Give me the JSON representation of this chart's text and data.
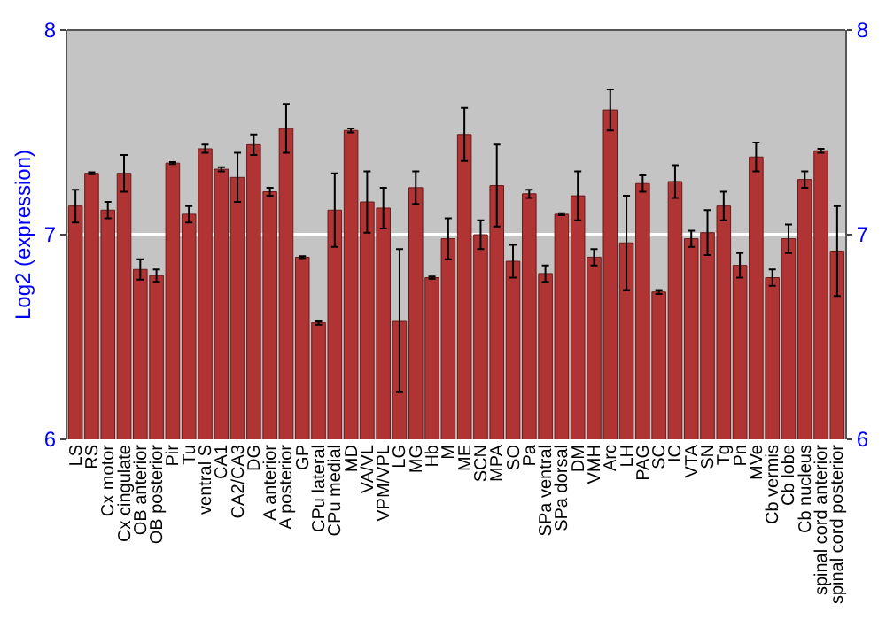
{
  "chart_data": {
    "type": "bar",
    "ylabel": "Log2 (expression)",
    "categories": [
      "LS",
      "RS",
      "Cx motor",
      "Cx cingulate",
      "OB anterior",
      "OB posterior",
      "Pir",
      "Tu",
      "ventral S",
      "CA1",
      "CA2/CA3",
      "DG",
      "A anterior",
      "A posterior",
      "GP",
      "CPu lateral",
      "CPu medial",
      "MD",
      "VA/VL",
      "VPM/VPL",
      "LG",
      "MG",
      "Hb",
      "M",
      "ME",
      "SCN",
      "MPA",
      "SO",
      "Pa",
      "SPa ventral",
      "SPa dorsal",
      "DM",
      "VMH",
      "Arc",
      "LH",
      "PAG",
      "SC",
      "IC",
      "VTA",
      "SN",
      "Tg",
      "Pn",
      "MVe",
      "Cb vermis",
      "Cb lobe",
      "Cb nucleus",
      "spinal cord anterior",
      "spinal cord posterior"
    ],
    "values": [
      7.14,
      7.3,
      7.12,
      7.3,
      6.83,
      6.8,
      7.35,
      7.1,
      7.42,
      7.32,
      7.28,
      7.44,
      7.21,
      7.52,
      6.89,
      6.57,
      7.12,
      7.51,
      7.16,
      7.13,
      6.58,
      7.23,
      6.79,
      6.98,
      7.49,
      7.0,
      7.24,
      6.87,
      7.2,
      6.81,
      7.1,
      7.19,
      6.89,
      7.61,
      6.96,
      7.25,
      6.72,
      7.26,
      6.98,
      7.01,
      7.14,
      6.85,
      7.38,
      6.79,
      6.98,
      7.27,
      7.41,
      6.92
    ],
    "errors": [
      0.08,
      0.005,
      0.04,
      0.09,
      0.05,
      0.03,
      0.005,
      0.04,
      0.02,
      0.01,
      0.12,
      0.05,
      0.02,
      0.12,
      0.005,
      0.01,
      0.18,
      0.01,
      0.15,
      0.1,
      0.35,
      0.08,
      0.005,
      0.1,
      0.13,
      0.07,
      0.2,
      0.08,
      0.02,
      0.04,
      0.005,
      0.12,
      0.04,
      0.1,
      0.23,
      0.04,
      0.01,
      0.08,
      0.04,
      0.11,
      0.07,
      0.06,
      0.07,
      0.04,
      0.07,
      0.04,
      0.01,
      0.22
    ],
    "color": "#b03434",
    "ylim": [
      6,
      8
    ],
    "yticks": [
      6,
      7,
      8
    ],
    "y2lim": [
      6,
      8
    ],
    "y2ticks": [
      6,
      7,
      8
    ],
    "grid": "y"
  }
}
